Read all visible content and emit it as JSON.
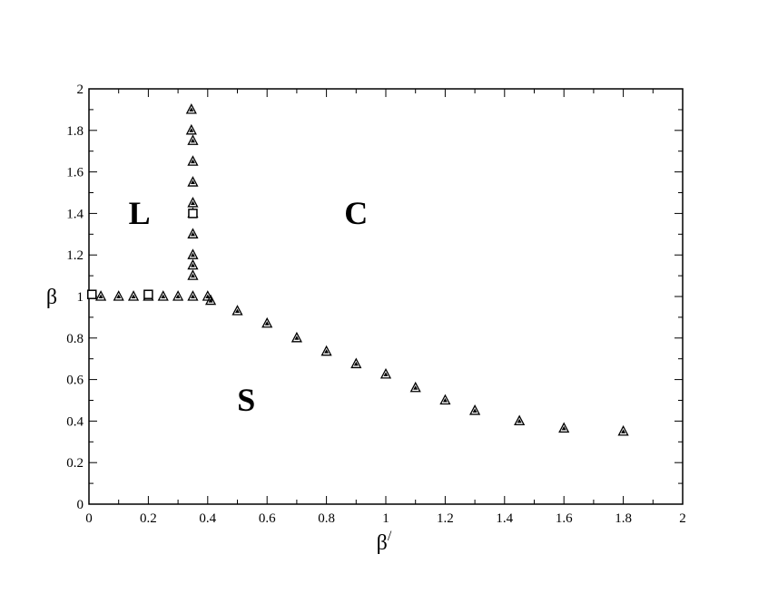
{
  "chart_data": {
    "type": "scatter",
    "title": "",
    "xlabel": "β",
    "xlabel_prime": "/",
    "ylabel": "β",
    "xlim": [
      0,
      2
    ],
    "ylim": [
      0,
      2
    ],
    "xticks": [
      "0",
      "0.2",
      "0.4",
      "0.6",
      "0.8",
      "1",
      "1.2",
      "1.4",
      "1.6",
      "1.8",
      "2"
    ],
    "yticks": [
      "0",
      "0.2",
      "0.4",
      "0.6",
      "0.8",
      "1",
      "1.2",
      "1.4",
      "1.6",
      "1.8",
      "2"
    ],
    "grid": false,
    "series": [
      {
        "marker": "triangle",
        "color": "#000000",
        "points": [
          [
            0.04,
            1.0
          ],
          [
            0.1,
            1.0
          ],
          [
            0.15,
            1.0
          ],
          [
            0.2,
            1.0
          ],
          [
            0.25,
            1.0
          ],
          [
            0.3,
            1.0
          ],
          [
            0.35,
            1.0
          ],
          [
            0.4,
            1.0
          ],
          [
            0.41,
            0.98
          ],
          [
            0.35,
            1.1
          ],
          [
            0.35,
            1.15
          ],
          [
            0.35,
            1.2
          ],
          [
            0.35,
            1.3
          ],
          [
            0.35,
            1.4
          ],
          [
            0.35,
            1.45
          ],
          [
            0.35,
            1.55
          ],
          [
            0.35,
            1.65
          ],
          [
            0.35,
            1.75
          ],
          [
            0.345,
            1.8
          ],
          [
            0.345,
            1.9
          ],
          [
            0.5,
            0.93
          ],
          [
            0.6,
            0.87
          ],
          [
            0.7,
            0.8
          ],
          [
            0.8,
            0.735
          ],
          [
            0.9,
            0.675
          ],
          [
            1.0,
            0.625
          ],
          [
            1.1,
            0.56
          ],
          [
            1.2,
            0.5
          ],
          [
            1.3,
            0.45
          ],
          [
            1.45,
            0.4
          ],
          [
            1.6,
            0.365
          ],
          [
            1.8,
            0.35
          ]
        ]
      },
      {
        "marker": "square",
        "color": "#000000",
        "points": [
          [
            0.01,
            1.01
          ],
          [
            0.2,
            1.01
          ],
          [
            0.35,
            1.4
          ]
        ]
      }
    ],
    "annotations": [
      {
        "text": "L",
        "x": 0.17,
        "y": 1.35
      },
      {
        "text": "C",
        "x": 0.9,
        "y": 1.35
      },
      {
        "text": "S",
        "x": 0.53,
        "y": 0.45
      }
    ]
  }
}
